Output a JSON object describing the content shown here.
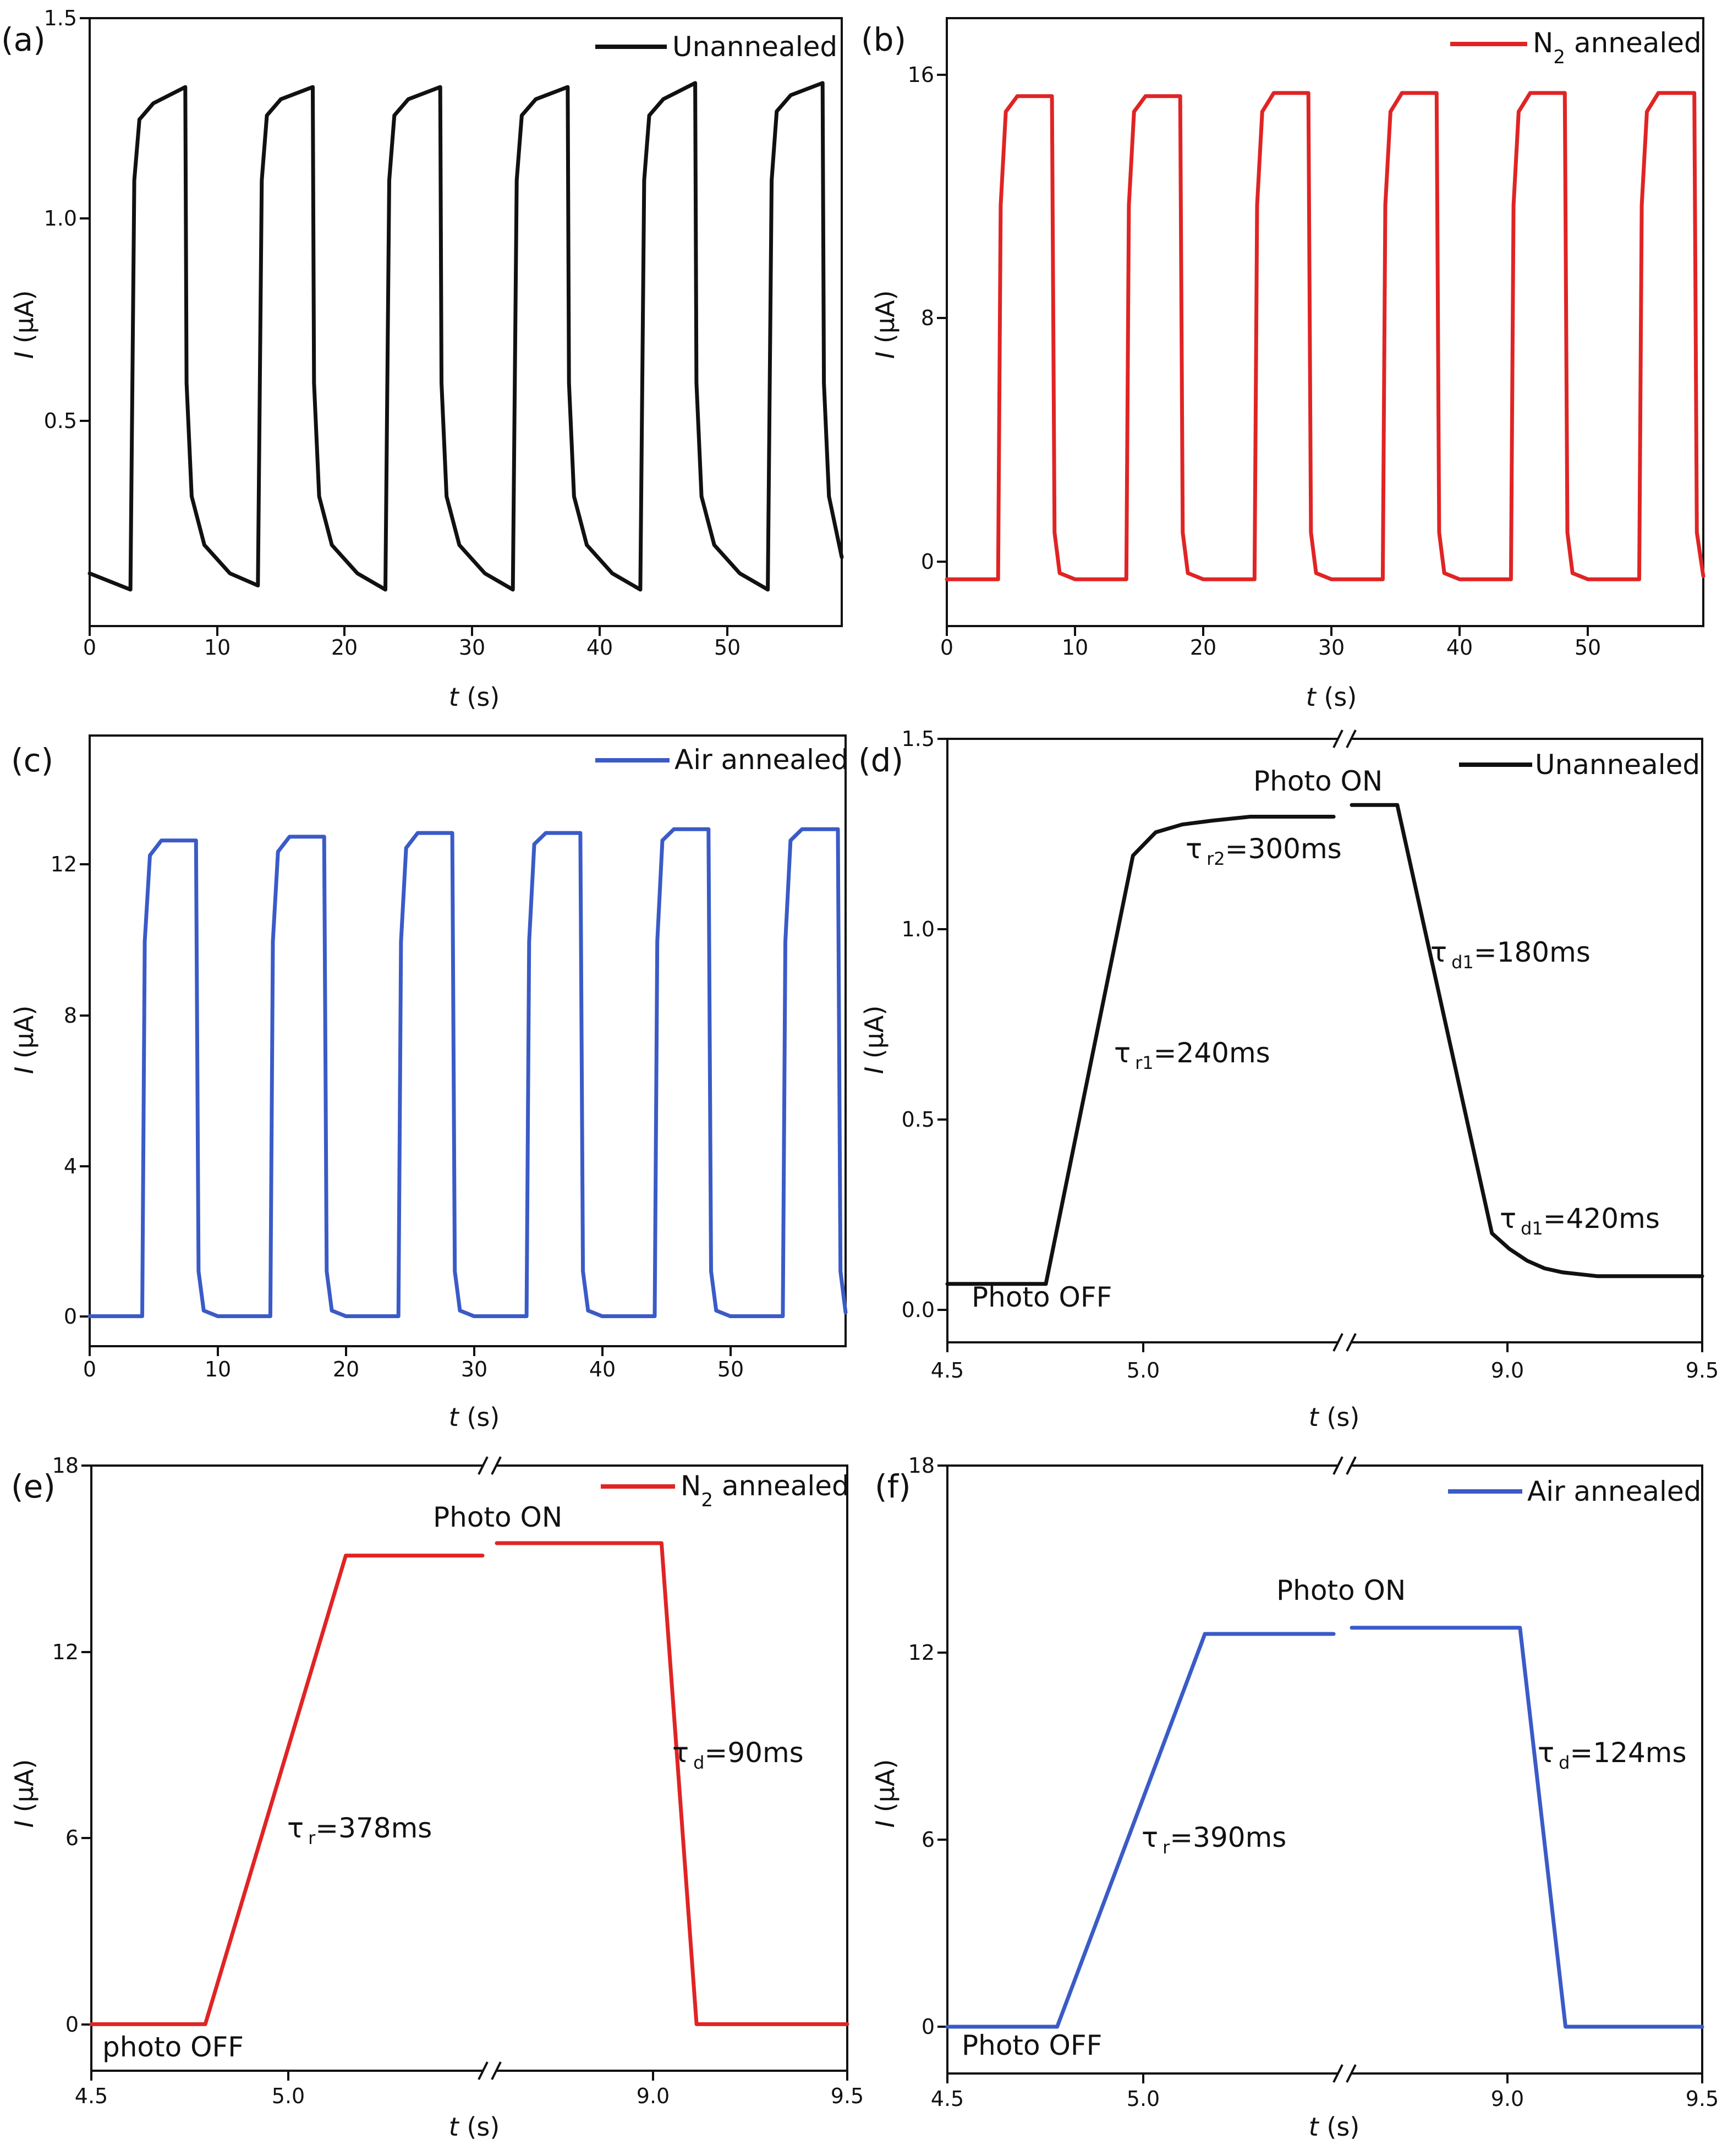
{
  "chart_data": [
    {
      "id": "a",
      "type": "line",
      "panel_label": "(a)",
      "xlabel_italic": "t",
      "xlabel_unit": " (s)",
      "ylabel_italic": "I",
      "ylabel_unit": " (μA)",
      "xlim": [
        0,
        59
      ],
      "ylim": [
        0.0,
        1.5
      ],
      "xticks": [
        "0",
        "10",
        "20",
        "30",
        "40",
        "50"
      ],
      "xtick_values": [
        0,
        10,
        20,
        30,
        40,
        50
      ],
      "yticks": [
        "0.5",
        "1.0",
        "1.5"
      ],
      "ytick_values": [
        0.5,
        1.0,
        1.5
      ],
      "legend": "top-right",
      "series": [
        {
          "name": "Unannealed",
          "color": "#111111",
          "points": [
            [
              0,
              0.13
            ],
            [
              3.2,
              0.09
            ],
            [
              3.5,
              1.1
            ],
            [
              3.9,
              1.25
            ],
            [
              5,
              1.29
            ],
            [
              7.5,
              1.33
            ],
            [
              7.6,
              0.6
            ],
            [
              8,
              0.32
            ],
            [
              9,
              0.2
            ],
            [
              11,
              0.13
            ],
            [
              13.2,
              0.1
            ],
            [
              13.5,
              1.1
            ],
            [
              13.9,
              1.26
            ],
            [
              15,
              1.3
            ],
            [
              17.5,
              1.33
            ],
            [
              17.6,
              0.6
            ],
            [
              18,
              0.32
            ],
            [
              19,
              0.2
            ],
            [
              21,
              0.13
            ],
            [
              23.2,
              0.09
            ],
            [
              23.5,
              1.1
            ],
            [
              23.9,
              1.26
            ],
            [
              25,
              1.3
            ],
            [
              27.5,
              1.33
            ],
            [
              27.6,
              0.6
            ],
            [
              28,
              0.32
            ],
            [
              29,
              0.2
            ],
            [
              31,
              0.13
            ],
            [
              33.2,
              0.09
            ],
            [
              33.5,
              1.1
            ],
            [
              33.9,
              1.26
            ],
            [
              35,
              1.3
            ],
            [
              37.5,
              1.33
            ],
            [
              37.6,
              0.6
            ],
            [
              38,
              0.32
            ],
            [
              39,
              0.2
            ],
            [
              41,
              0.13
            ],
            [
              43.2,
              0.09
            ],
            [
              43.5,
              1.1
            ],
            [
              43.9,
              1.26
            ],
            [
              45,
              1.3
            ],
            [
              47.5,
              1.34
            ],
            [
              47.6,
              0.6
            ],
            [
              48,
              0.32
            ],
            [
              49,
              0.2
            ],
            [
              51,
              0.13
            ],
            [
              53.2,
              0.09
            ],
            [
              53.5,
              1.1
            ],
            [
              53.9,
              1.27
            ],
            [
              55,
              1.31
            ],
            [
              57.5,
              1.34
            ],
            [
              57.6,
              0.6
            ],
            [
              58,
              0.32
            ],
            [
              59,
              0.17
            ]
          ]
        }
      ]
    },
    {
      "id": "b",
      "type": "line",
      "panel_label": "(b)",
      "xlabel_italic": "t",
      "xlabel_unit": " (s)",
      "ylabel_italic": "I",
      "ylabel_unit": " (μA)",
      "xlim": [
        0,
        59
      ],
      "ylim": [
        -1.5,
        18
      ],
      "xticks": [
        "0",
        "10",
        "20",
        "30",
        "40",
        "50"
      ],
      "xtick_values": [
        0,
        10,
        20,
        30,
        40,
        50
      ],
      "yticks": [
        "0",
        "8",
        "16"
      ],
      "ytick_values": [
        0,
        8,
        16
      ],
      "legend": "top-right",
      "series": [
        {
          "name": "N2 annealed",
          "legend_main": "N",
          "legend_sub": "2",
          "legend_rest": " annealed",
          "color": "#e02424",
          "points": [
            [
              0,
              0
            ],
            [
              4.0,
              0
            ],
            [
              4.2,
              12
            ],
            [
              4.6,
              15
            ],
            [
              5.5,
              15.5
            ],
            [
              8.2,
              15.5
            ],
            [
              8.4,
              1.5
            ],
            [
              8.8,
              0.2
            ],
            [
              10,
              0
            ],
            [
              14.0,
              0
            ],
            [
              14.2,
              12
            ],
            [
              14.6,
              15
            ],
            [
              15.5,
              15.5
            ],
            [
              18.2,
              15.5
            ],
            [
              18.4,
              1.5
            ],
            [
              18.8,
              0.2
            ],
            [
              20,
              0
            ],
            [
              24.0,
              0
            ],
            [
              24.2,
              12
            ],
            [
              24.6,
              15
            ],
            [
              25.5,
              15.6
            ],
            [
              28.2,
              15.6
            ],
            [
              28.4,
              1.5
            ],
            [
              28.8,
              0.2
            ],
            [
              30,
              0
            ],
            [
              34.0,
              0
            ],
            [
              34.2,
              12
            ],
            [
              34.6,
              15
            ],
            [
              35.5,
              15.6
            ],
            [
              38.2,
              15.6
            ],
            [
              38.4,
              1.5
            ],
            [
              38.8,
              0.2
            ],
            [
              40,
              0
            ],
            [
              44.0,
              0
            ],
            [
              44.2,
              12
            ],
            [
              44.6,
              15
            ],
            [
              45.5,
              15.6
            ],
            [
              48.2,
              15.6
            ],
            [
              48.4,
              1.5
            ],
            [
              48.8,
              0.2
            ],
            [
              50,
              0
            ],
            [
              54.0,
              0
            ],
            [
              54.2,
              12
            ],
            [
              54.6,
              15
            ],
            [
              55.5,
              15.6
            ],
            [
              58.3,
              15.6
            ],
            [
              58.5,
              1.5
            ],
            [
              59,
              0.1
            ]
          ]
        }
      ]
    },
    {
      "id": "c",
      "type": "line",
      "panel_label": "(c)",
      "xlabel_italic": "t",
      "xlabel_unit": " (s)",
      "ylabel_italic": "I",
      "ylabel_unit": " (μA)",
      "xlim": [
        0,
        59
      ],
      "ylim": [
        -0.8,
        15.5
      ],
      "xticks": [
        "0",
        "10",
        "20",
        "30",
        "40",
        "50"
      ],
      "xtick_values": [
        0,
        10,
        20,
        30,
        40,
        50
      ],
      "yticks": [
        "0",
        "4",
        "8",
        "12"
      ],
      "ytick_values": [
        0,
        4,
        8,
        12
      ],
      "legend": "top-right",
      "series": [
        {
          "name": "Air annealed",
          "color": "#3a5bc7",
          "points": [
            [
              0,
              0
            ],
            [
              4.1,
              0
            ],
            [
              4.3,
              10
            ],
            [
              4.7,
              12.3
            ],
            [
              5.6,
              12.7
            ],
            [
              8.3,
              12.7
            ],
            [
              8.5,
              1.2
            ],
            [
              8.9,
              0.15
            ],
            [
              10,
              0
            ],
            [
              14.1,
              0
            ],
            [
              14.3,
              10
            ],
            [
              14.7,
              12.4
            ],
            [
              15.6,
              12.8
            ],
            [
              18.3,
              12.8
            ],
            [
              18.5,
              1.2
            ],
            [
              18.9,
              0.15
            ],
            [
              20,
              0
            ],
            [
              24.1,
              0
            ],
            [
              24.3,
              10
            ],
            [
              24.7,
              12.5
            ],
            [
              25.6,
              12.9
            ],
            [
              28.3,
              12.9
            ],
            [
              28.5,
              1.2
            ],
            [
              28.9,
              0.15
            ],
            [
              30,
              0
            ],
            [
              34.1,
              0
            ],
            [
              34.3,
              10
            ],
            [
              34.7,
              12.6
            ],
            [
              35.6,
              12.9
            ],
            [
              38.3,
              12.9
            ],
            [
              38.5,
              1.2
            ],
            [
              38.9,
              0.15
            ],
            [
              40,
              0
            ],
            [
              44.1,
              0
            ],
            [
              44.3,
              10
            ],
            [
              44.7,
              12.7
            ],
            [
              45.6,
              13.0
            ],
            [
              48.3,
              13.0
            ],
            [
              48.5,
              1.2
            ],
            [
              48.9,
              0.15
            ],
            [
              50,
              0
            ],
            [
              54.1,
              0
            ],
            [
              54.3,
              10
            ],
            [
              54.7,
              12.7
            ],
            [
              55.6,
              13.0
            ],
            [
              58.4,
              13.0
            ],
            [
              58.6,
              1.2
            ],
            [
              59,
              0.1
            ]
          ]
        }
      ]
    },
    {
      "id": "d",
      "type": "line",
      "panel_label": "(d)",
      "xlabel_italic": "t",
      "xlabel_unit": " (s)",
      "ylabel_italic": "I",
      "ylabel_unit": " (μA)",
      "broken_x_axis": true,
      "xlim": [
        4.5,
        9.5
      ],
      "ylim": [
        -0.05,
        1.5
      ],
      "xticks": [
        "4.5",
        "5.0",
        "9.0",
        "9.5"
      ],
      "xtick_values": [
        4.5,
        5.0,
        9.0,
        9.5
      ],
      "yticks": [
        "0.0",
        "0.5",
        "1.0",
        "1.5"
      ],
      "ytick_values": [
        0.0,
        0.5,
        1.0,
        1.5
      ],
      "legend": "top-right",
      "series": [
        {
          "name": "Unannealed",
          "color": "#111111",
          "segments": [
            [
              [
                4.5,
                0.1
              ],
              [
                4.76,
                0.1
              ],
              [
                4.99,
                1.2
              ],
              [
                5.05,
                1.26
              ],
              [
                5.12,
                1.28
              ],
              [
                5.2,
                1.29
              ],
              [
                5.3,
                1.3
              ],
              [
                5.52,
                1.3
              ]
            ],
            [
              [
                8.5,
                1.33
              ],
              [
                8.63,
                1.33
              ],
              [
                8.9,
                0.23
              ],
              [
                8.95,
                0.19
              ],
              [
                9.0,
                0.16
              ],
              [
                9.05,
                0.14
              ],
              [
                9.1,
                0.13
              ],
              [
                9.2,
                0.12
              ],
              [
                9.5,
                0.12
              ]
            ]
          ]
        }
      ],
      "annotations": [
        {
          "greek": "τ",
          "sub": "r1",
          "value": "=240ms"
        },
        {
          "greek": "τ",
          "sub": "r2",
          "value": "=300ms"
        },
        {
          "greek": "τ",
          "sub": "d1",
          "value": "=180ms"
        },
        {
          "greek": "τ",
          "sub": "d1",
          "value": "=420ms"
        },
        {
          "text": "Photo ON"
        },
        {
          "text": "Photo OFF"
        }
      ]
    },
    {
      "id": "e",
      "type": "line",
      "panel_label": "(e)",
      "xlabel_italic": "t",
      "xlabel_unit": " (s)",
      "ylabel_italic": "I",
      "ylabel_unit": " (μA)",
      "broken_x_axis": true,
      "xlim": [
        4.5,
        9.5
      ],
      "ylim": [
        -1.5,
        18
      ],
      "xticks": [
        "4.5",
        "5.0",
        "9.0",
        "9.5"
      ],
      "xtick_values": [
        4.5,
        5.0,
        9.0,
        9.5
      ],
      "yticks": [
        "0",
        "6",
        "12",
        "18"
      ],
      "ytick_values": [
        0,
        6,
        12,
        18
      ],
      "legend": "top-right",
      "series": [
        {
          "name": "N2 annealed",
          "legend_main": "N",
          "legend_sub": "2",
          "legend_rest": " annealed",
          "color": "#e02424",
          "segments": [
            [
              [
                4.5,
                0
              ],
              [
                4.8,
                0
              ],
              [
                5.17,
                15.1
              ],
              [
                5.53,
                15.1
              ]
            ],
            [
              [
                8.5,
                15.5
              ],
              [
                8.97,
                15.5
              ],
              [
                9.07,
                0
              ],
              [
                9.5,
                0
              ]
            ]
          ]
        }
      ],
      "annotations": [
        {
          "greek": "τ",
          "sub": "r",
          "value": "=378ms"
        },
        {
          "greek": "τ",
          "sub": "d",
          "value": "=90ms"
        },
        {
          "text": "Photo ON"
        },
        {
          "text": "photo OFF"
        }
      ]
    },
    {
      "id": "f",
      "type": "line",
      "panel_label": "(f)",
      "xlabel_italic": "t",
      "xlabel_unit": " (s)",
      "ylabel_italic": "I",
      "ylabel_unit": " (μA)",
      "broken_x_axis": true,
      "xlim": [
        4.5,
        9.5
      ],
      "ylim": [
        -1.5,
        18
      ],
      "xticks": [
        "4.5",
        "5.0",
        "9.0",
        "9.5"
      ],
      "xtick_values": [
        4.5,
        5.0,
        9.0,
        9.5
      ],
      "yticks": [
        "0",
        "6",
        "12",
        "18"
      ],
      "ytick_values": [
        0,
        6,
        12,
        18
      ],
      "legend": "top-right",
      "series": [
        {
          "name": "Air annealed",
          "color": "#3a5bc7",
          "segments": [
            [
              [
                4.5,
                0
              ],
              [
                4.79,
                0
              ],
              [
                5.18,
                12.6
              ],
              [
                5.52,
                12.6
              ]
            ],
            [
              [
                8.5,
                12.8
              ],
              [
                8.98,
                12.8
              ],
              [
                9.11,
                0
              ],
              [
                9.5,
                0
              ]
            ]
          ]
        }
      ],
      "annotations": [
        {
          "greek": "τ",
          "sub": "r",
          "value": "=390ms"
        },
        {
          "greek": "τ",
          "sub": "d",
          "value": "=124ms"
        },
        {
          "text": "Photo ON"
        },
        {
          "text": "Photo OFF"
        }
      ]
    }
  ]
}
